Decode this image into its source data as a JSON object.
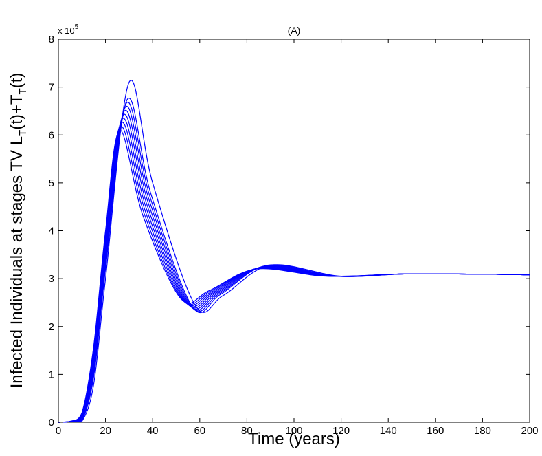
{
  "chart_data": {
    "type": "line",
    "title": "(A)",
    "xlabel": "Time (years)",
    "ylabel_main": "Infected Individuals at stages TV L",
    "ylabel_sub1": "T",
    "ylabel_mid": "(t)+T",
    "ylabel_sub2": "T",
    "ylabel_end": "(t)",
    "y_multiplier_base": "x 10",
    "y_multiplier_exp": "5",
    "xlim": [
      0,
      200
    ],
    "ylim": [
      0,
      8
    ],
    "x_ticks": [
      "0",
      "20",
      "40",
      "60",
      "80",
      "100",
      "120",
      "140",
      "160",
      "180",
      "200"
    ],
    "y_ticks": [
      "0",
      "1",
      "2",
      "3",
      "4",
      "5",
      "6",
      "7",
      "8"
    ],
    "grid": false,
    "legend": "none",
    "line_color": "#0000ff",
    "series": [
      {
        "x": [
          0,
          5,
          10,
          15,
          20,
          26,
          36,
          52,
          64,
          84,
          114,
          150,
          200
        ],
        "y": [
          0,
          0.02,
          0.2,
          1.6,
          4.0,
          6.1,
          4.3,
          2.58,
          2.75,
          3.2,
          3.05,
          3.1,
          3.08
        ]
      },
      {
        "x": [
          0,
          5,
          10,
          15,
          20,
          26.4,
          36.4,
          52.6,
          64.6,
          84.6,
          114.6,
          150,
          200
        ],
        "y": [
          0,
          0.019,
          0.18,
          1.52,
          3.9,
          6.18,
          4.36,
          2.56,
          2.74,
          3.21,
          3.05,
          3.1,
          3.08
        ]
      },
      {
        "x": [
          0,
          5,
          10,
          15,
          20,
          26.8,
          36.8,
          53.2,
          65.2,
          85.2,
          115.2,
          150,
          200
        ],
        "y": [
          0,
          0.018,
          0.16,
          1.44,
          3.8,
          6.26,
          4.42,
          2.54,
          2.73,
          3.22,
          3.05,
          3.1,
          3.08
        ]
      },
      {
        "x": [
          0,
          5,
          10,
          15,
          20,
          27.2,
          37.2,
          53.8,
          65.8,
          85.8,
          115.8,
          150,
          200
        ],
        "y": [
          0,
          0.017,
          0.14,
          1.36,
          3.7,
          6.34,
          4.48,
          2.52,
          2.72,
          3.23,
          3.05,
          3.1,
          3.08
        ]
      },
      {
        "x": [
          0,
          5,
          10,
          15,
          20,
          27.6,
          37.6,
          54.4,
          66.4,
          86.4,
          116.4,
          150,
          200
        ],
        "y": [
          0,
          0.016,
          0.12,
          1.28,
          3.6,
          6.42,
          4.54,
          2.5,
          2.71,
          3.24,
          3.05,
          3.1,
          3.08
        ]
      },
      {
        "x": [
          0,
          5,
          10,
          15,
          20,
          28,
          38,
          55,
          67,
          87,
          117,
          150,
          200
        ],
        "y": [
          0,
          0.015,
          0.1,
          1.2,
          3.5,
          6.5,
          4.6,
          2.48,
          2.7,
          3.25,
          3.05,
          3.1,
          3.08
        ]
      },
      {
        "x": [
          0,
          5,
          10,
          15,
          20,
          28.4,
          38.4,
          55.6,
          67.6,
          87.6,
          117.6,
          150,
          200
        ],
        "y": [
          0,
          0.014,
          0.08,
          1.12,
          3.4,
          6.58,
          4.66,
          2.46,
          2.69,
          3.26,
          3.05,
          3.1,
          3.08
        ]
      },
      {
        "x": [
          0,
          5,
          10,
          15,
          20,
          28.8,
          38.8,
          56.2,
          68.2,
          88.2,
          118.2,
          150,
          200
        ],
        "y": [
          0,
          0.013,
          0.06,
          1.04,
          3.3,
          6.66,
          4.72,
          2.44,
          2.68,
          3.27,
          3.05,
          3.1,
          3.08
        ]
      },
      {
        "x": [
          0,
          5,
          10,
          15,
          20,
          29.2,
          39.2,
          56.8,
          68.8,
          88.8,
          118.8,
          150,
          200
        ],
        "y": [
          0,
          0.012,
          0.04,
          0.96,
          3.2,
          6.74,
          4.78,
          2.42,
          2.67,
          3.28,
          3.05,
          3.1,
          3.08
        ]
      },
      {
        "x": [
          0,
          5,
          10,
          15,
          20,
          30,
          40,
          58,
          70,
          90,
          120,
          150,
          200
        ],
        "y": [
          0,
          0.01,
          0.02,
          0.8,
          3.0,
          7.1,
          5.0,
          2.45,
          2.65,
          3.28,
          3.05,
          3.1,
          3.08
        ]
      }
    ]
  }
}
